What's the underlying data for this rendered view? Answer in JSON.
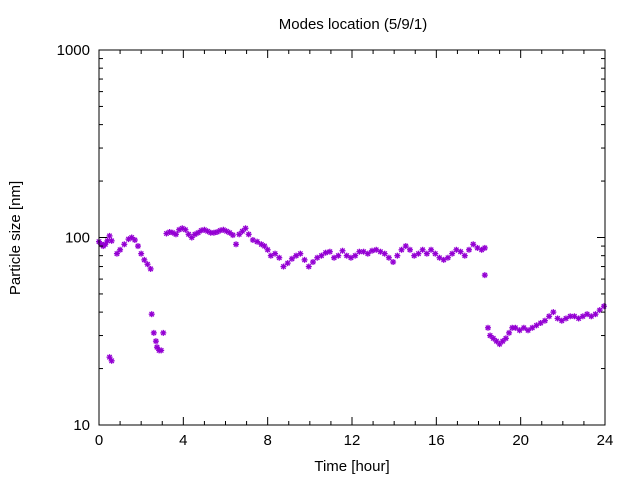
{
  "chart_data": {
    "type": "scatter",
    "title": "Modes location (5/9/1)",
    "xlabel": "Time [hour]",
    "ylabel": "Particle size [nm]",
    "xlim": [
      0,
      24
    ],
    "ylim": [
      10,
      1000
    ],
    "yscale": "log",
    "x_ticks": [
      0,
      4,
      8,
      12,
      16,
      20,
      24
    ],
    "x_tick_labels": [
      "0",
      "4",
      "8",
      "12",
      "16",
      "20",
      "24"
    ],
    "y_ticks": [
      10,
      100,
      1000
    ],
    "y_tick_labels": [
      "10",
      "100",
      "1000"
    ],
    "grid": false,
    "legend": "none",
    "marker_color": "#9400d3",
    "series": [
      {
        "values": [
          [
            0.0,
            95
          ],
          [
            0.1,
            92
          ],
          [
            0.2,
            90
          ],
          [
            0.3,
            92
          ],
          [
            0.4,
            96
          ],
          [
            0.5,
            102
          ],
          [
            0.6,
            96
          ],
          [
            0.5,
            23
          ],
          [
            0.6,
            22
          ],
          [
            0.85,
            82
          ],
          [
            1.0,
            86
          ],
          [
            1.2,
            92
          ],
          [
            1.4,
            98
          ],
          [
            1.55,
            100
          ],
          [
            1.7,
            97
          ],
          [
            1.85,
            90
          ],
          [
            2.0,
            82
          ],
          [
            2.15,
            76
          ],
          [
            2.3,
            72
          ],
          [
            2.45,
            68
          ],
          [
            2.5,
            39
          ],
          [
            2.6,
            31
          ],
          [
            2.7,
            28
          ],
          [
            2.75,
            26
          ],
          [
            2.85,
            25
          ],
          [
            2.95,
            25
          ],
          [
            3.05,
            31
          ],
          [
            3.2,
            105
          ],
          [
            3.35,
            107
          ],
          [
            3.5,
            106
          ],
          [
            3.65,
            104
          ],
          [
            3.8,
            110
          ],
          [
            3.95,
            112
          ],
          [
            4.1,
            110
          ],
          [
            4.25,
            104
          ],
          [
            4.4,
            100
          ],
          [
            4.55,
            104
          ],
          [
            4.7,
            106
          ],
          [
            4.85,
            109
          ],
          [
            5.0,
            110
          ],
          [
            5.15,
            108
          ],
          [
            5.3,
            106
          ],
          [
            5.45,
            106
          ],
          [
            5.6,
            107
          ],
          [
            5.75,
            109
          ],
          [
            5.9,
            110
          ],
          [
            6.05,
            108
          ],
          [
            6.2,
            106
          ],
          [
            6.35,
            103
          ],
          [
            6.5,
            92
          ],
          [
            6.65,
            104
          ],
          [
            6.8,
            108
          ],
          [
            6.95,
            112
          ],
          [
            7.1,
            104
          ],
          [
            7.3,
            97
          ],
          [
            7.5,
            95
          ],
          [
            7.7,
            92
          ],
          [
            7.85,
            90
          ],
          [
            8.0,
            86
          ],
          [
            8.15,
            80
          ],
          [
            8.35,
            82
          ],
          [
            8.55,
            78
          ],
          [
            8.75,
            70
          ],
          [
            8.95,
            73
          ],
          [
            9.15,
            77
          ],
          [
            9.35,
            80
          ],
          [
            9.55,
            82
          ],
          [
            9.75,
            76
          ],
          [
            9.95,
            70
          ],
          [
            10.15,
            74
          ],
          [
            10.35,
            78
          ],
          [
            10.55,
            80
          ],
          [
            10.75,
            83
          ],
          [
            10.95,
            84
          ],
          [
            11.15,
            78
          ],
          [
            11.35,
            80
          ],
          [
            11.55,
            85
          ],
          [
            11.75,
            80
          ],
          [
            11.95,
            78
          ],
          [
            12.15,
            80
          ],
          [
            12.35,
            84
          ],
          [
            12.55,
            84
          ],
          [
            12.75,
            82
          ],
          [
            12.95,
            85
          ],
          [
            13.15,
            86
          ],
          [
            13.35,
            84
          ],
          [
            13.55,
            82
          ],
          [
            13.75,
            78
          ],
          [
            13.95,
            74
          ],
          [
            14.15,
            80
          ],
          [
            14.35,
            86
          ],
          [
            14.55,
            90
          ],
          [
            14.75,
            86
          ],
          [
            14.95,
            80
          ],
          [
            15.15,
            82
          ],
          [
            15.35,
            86
          ],
          [
            15.55,
            82
          ],
          [
            15.75,
            86
          ],
          [
            15.95,
            82
          ],
          [
            16.15,
            78
          ],
          [
            16.35,
            76
          ],
          [
            16.55,
            78
          ],
          [
            16.75,
            82
          ],
          [
            16.95,
            86
          ],
          [
            17.15,
            84
          ],
          [
            17.35,
            80
          ],
          [
            17.55,
            86
          ],
          [
            17.75,
            92
          ],
          [
            17.95,
            88
          ],
          [
            18.15,
            86
          ],
          [
            18.3,
            88
          ],
          [
            18.3,
            63
          ],
          [
            18.45,
            33
          ],
          [
            18.55,
            30
          ],
          [
            18.7,
            29
          ],
          [
            18.85,
            28
          ],
          [
            19.0,
            27
          ],
          [
            19.15,
            28
          ],
          [
            19.3,
            29
          ],
          [
            19.45,
            31
          ],
          [
            19.6,
            33
          ],
          [
            19.75,
            33
          ],
          [
            19.95,
            32
          ],
          [
            20.15,
            33
          ],
          [
            20.35,
            32
          ],
          [
            20.55,
            33
          ],
          [
            20.75,
            34
          ],
          [
            20.95,
            35
          ],
          [
            21.15,
            36
          ],
          [
            21.35,
            38
          ],
          [
            21.55,
            40
          ],
          [
            21.75,
            37
          ],
          [
            21.95,
            36
          ],
          [
            22.15,
            37
          ],
          [
            22.35,
            38
          ],
          [
            22.55,
            38
          ],
          [
            22.75,
            37
          ],
          [
            22.95,
            38
          ],
          [
            23.15,
            39
          ],
          [
            23.35,
            38
          ],
          [
            23.55,
            39
          ],
          [
            23.75,
            41
          ],
          [
            23.95,
            43
          ]
        ]
      }
    ]
  }
}
